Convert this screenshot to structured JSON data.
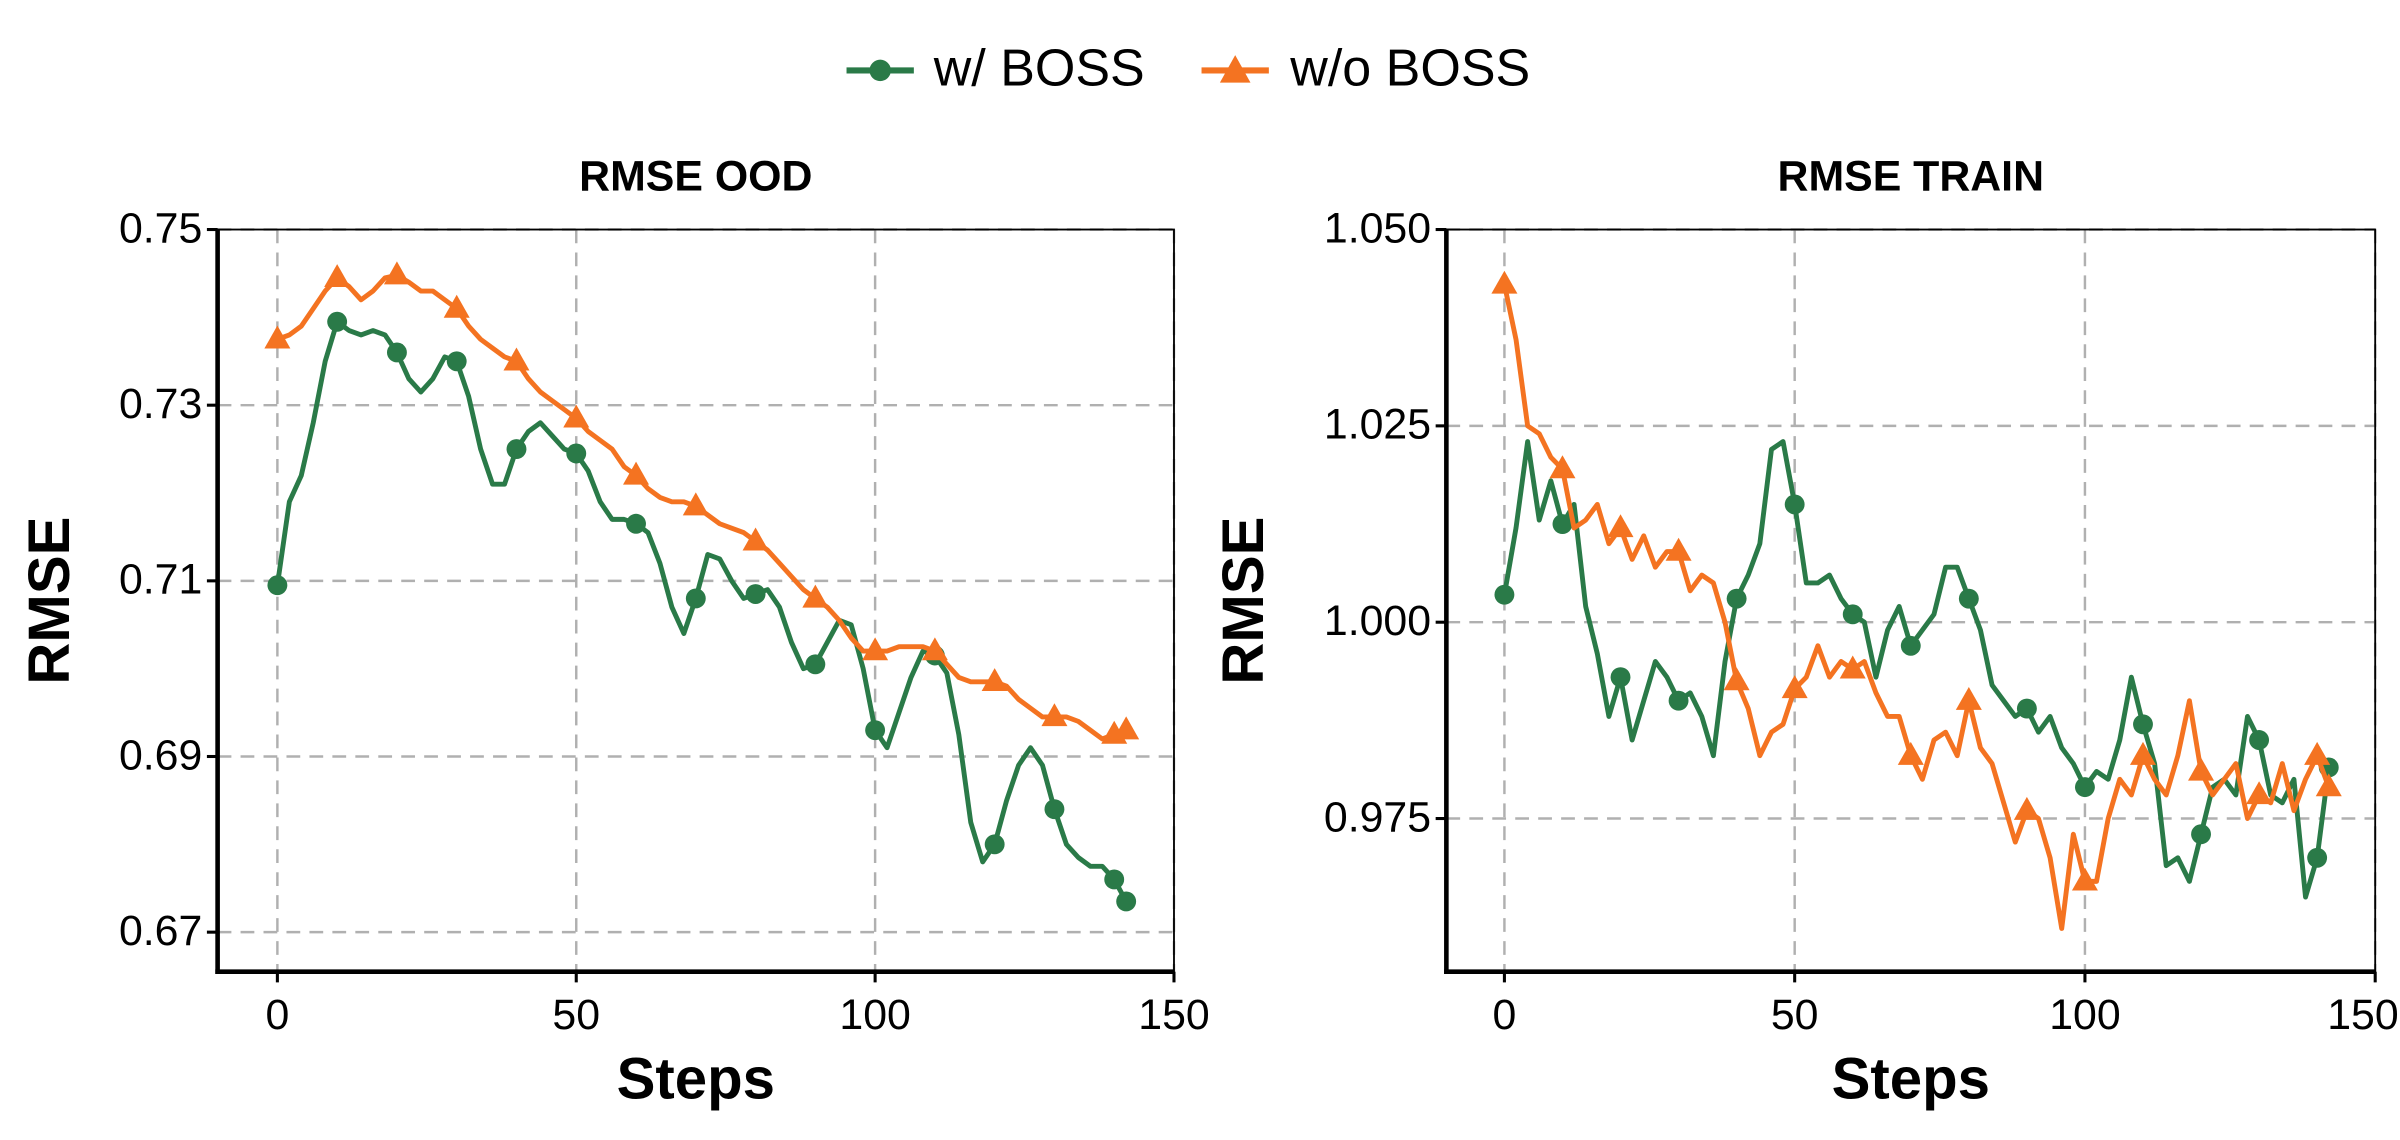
{
  "chart_data": [
    {
      "type": "line",
      "title": "RMSE OOD",
      "xlabel": "Steps",
      "ylabel": "RMSE",
      "x": [
        0,
        2,
        4,
        6,
        8,
        10,
        12,
        14,
        16,
        18,
        20,
        22,
        24,
        26,
        28,
        30,
        32,
        34,
        36,
        38,
        40,
        42,
        44,
        46,
        48,
        50,
        52,
        54,
        56,
        58,
        60,
        62,
        64,
        66,
        68,
        70,
        72,
        74,
        76,
        78,
        80,
        82,
        84,
        86,
        88,
        90,
        92,
        94,
        96,
        98,
        100,
        102,
        104,
        106,
        108,
        110,
        112,
        114,
        116,
        118,
        120,
        122,
        124,
        126,
        128,
        130,
        132,
        134,
        136,
        138,
        140,
        142
      ],
      "series": [
        {
          "name": "w/ BOSS",
          "color": "#2a7a48",
          "marker": "circle",
          "values": [
            0.7095,
            0.719,
            0.722,
            0.728,
            0.735,
            0.7395,
            0.7385,
            0.738,
            0.7385,
            0.738,
            0.736,
            0.733,
            0.7315,
            0.733,
            0.7355,
            0.735,
            0.731,
            0.725,
            0.721,
            0.721,
            0.725,
            0.727,
            0.728,
            0.7265,
            0.725,
            0.7245,
            0.7225,
            0.719,
            0.717,
            0.717,
            0.7165,
            0.7155,
            0.712,
            0.707,
            0.704,
            0.708,
            0.713,
            0.7125,
            0.71,
            0.708,
            0.7085,
            0.709,
            0.707,
            0.703,
            0.7,
            0.7005,
            0.703,
            0.7055,
            0.705,
            0.7,
            0.693,
            0.691,
            0.695,
            0.699,
            0.702,
            0.7015,
            0.6995,
            0.6925,
            0.6825,
            0.678,
            0.68,
            0.685,
            0.689,
            0.691,
            0.689,
            0.684,
            0.68,
            0.6785,
            0.6775,
            0.6775,
            0.676,
            0.6735
          ]
        },
        {
          "name": "w/o BOSS",
          "color": "#f47321",
          "marker": "triangle",
          "values": [
            0.7375,
            0.738,
            0.739,
            0.741,
            0.743,
            0.7445,
            0.7435,
            0.742,
            0.743,
            0.7445,
            0.7448,
            0.744,
            0.743,
            0.743,
            0.742,
            0.741,
            0.739,
            0.7375,
            0.7365,
            0.7355,
            0.735,
            0.733,
            0.7315,
            0.7305,
            0.7295,
            0.7285,
            0.727,
            0.726,
            0.725,
            0.723,
            0.722,
            0.7205,
            0.7195,
            0.719,
            0.719,
            0.7185,
            0.7175,
            0.7165,
            0.716,
            0.7155,
            0.7145,
            0.7135,
            0.712,
            0.7105,
            0.709,
            0.708,
            0.707,
            0.7055,
            0.7035,
            0.702,
            0.702,
            0.702,
            0.7025,
            0.7025,
            0.7025,
            0.702,
            0.7005,
            0.699,
            0.6985,
            0.6985,
            0.6985,
            0.698,
            0.6965,
            0.6955,
            0.6945,
            0.6945,
            0.6945,
            0.694,
            0.693,
            0.692,
            0.6925,
            0.693
          ]
        }
      ],
      "xlim": [
        -10,
        150
      ],
      "xticks": [
        0,
        50,
        100,
        150
      ],
      "ylim": [
        0.6655,
        0.75
      ],
      "yticks": [
        0.67,
        0.69,
        0.71,
        0.73,
        0.75
      ],
      "grid": true
    },
    {
      "type": "line",
      "title": "RMSE TRAIN",
      "xlabel": "Steps",
      "ylabel": "RMSE",
      "x": [
        0,
        2,
        4,
        6,
        8,
        10,
        12,
        14,
        16,
        18,
        20,
        22,
        24,
        26,
        28,
        30,
        32,
        34,
        36,
        38,
        40,
        42,
        44,
        46,
        48,
        50,
        52,
        54,
        56,
        58,
        60,
        62,
        64,
        66,
        68,
        70,
        72,
        74,
        76,
        78,
        80,
        82,
        84,
        86,
        88,
        90,
        92,
        94,
        96,
        98,
        100,
        102,
        104,
        106,
        108,
        110,
        112,
        114,
        116,
        118,
        120,
        122,
        124,
        126,
        128,
        130,
        132,
        134,
        136,
        138,
        140,
        142
      ],
      "series": [
        {
          "color": "#2a7a48",
          "marker": "circle",
          "values": [
            1.0035,
            1.012,
            1.023,
            1.013,
            1.018,
            1.0125,
            1.015,
            1.002,
            0.996,
            0.988,
            0.993,
            0.985,
            0.99,
            0.995,
            0.993,
            0.99,
            0.991,
            0.988,
            0.983,
            0.995,
            1.003,
            1.006,
            1.01,
            1.022,
            1.023,
            1.015,
            1.005,
            1.005,
            1.006,
            1.003,
            1.001,
            1.0,
            0.993,
            0.999,
            1.002,
            0.997,
            0.999,
            1.001,
            1.007,
            1.007,
            1.003,
            0.999,
            0.992,
            0.99,
            0.988,
            0.989,
            0.986,
            0.988,
            0.984,
            0.982,
            0.979,
            0.981,
            0.98,
            0.985,
            0.993,
            0.987,
            0.982,
            0.969,
            0.97,
            0.967,
            0.973,
            0.979,
            0.98,
            0.978,
            0.988,
            0.985,
            0.978,
            0.977,
            0.98,
            0.965,
            0.97,
            0.9815
          ]
        },
        {
          "color": "#f47321",
          "marker": "triangle",
          "values": [
            1.043,
            1.036,
            1.025,
            1.024,
            1.021,
            1.0195,
            1.012,
            1.013,
            1.015,
            1.01,
            1.012,
            1.008,
            1.011,
            1.007,
            1.009,
            1.009,
            1.004,
            1.006,
            1.005,
            1.0,
            0.9925,
            0.989,
            0.983,
            0.986,
            0.987,
            0.9915,
            0.993,
            0.997,
            0.993,
            0.995,
            0.994,
            0.995,
            0.991,
            0.988,
            0.988,
            0.983,
            0.98,
            0.985,
            0.986,
            0.983,
            0.99,
            0.984,
            0.982,
            0.977,
            0.972,
            0.976,
            0.975,
            0.97,
            0.961,
            0.973,
            0.967,
            0.967,
            0.975,
            0.98,
            0.978,
            0.983,
            0.98,
            0.978,
            0.983,
            0.99,
            0.981,
            0.978,
            0.98,
            0.982,
            0.975,
            0.978,
            0.977,
            0.982,
            0.976,
            0.98,
            0.983,
            0.979
          ]
        }
      ],
      "xlim": [
        -10,
        150
      ],
      "xticks": [
        0,
        50,
        100,
        150
      ],
      "ylim": [
        0.9555,
        1.05
      ],
      "yticks": [
        0.975,
        {
          "value": 1.0,
          "label": "1.000"
        },
        1.025,
        {
          "value": 1.05,
          "label": "1.050"
        }
      ],
      "grid": true
    }
  ]
}
